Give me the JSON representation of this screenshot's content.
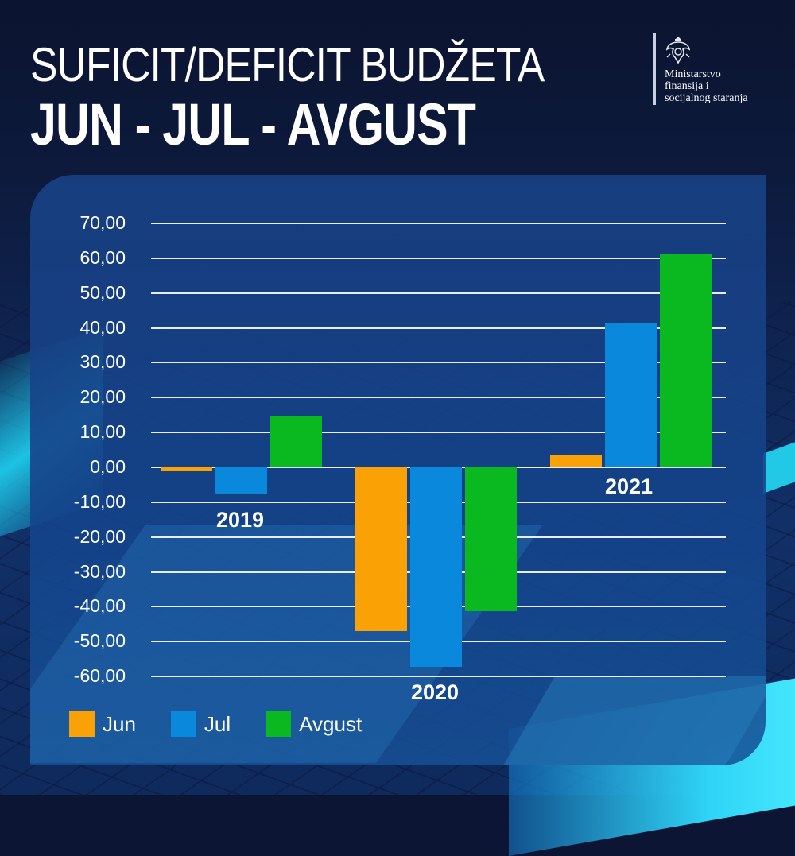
{
  "header": {
    "title_line1": "SUFICIT/DEFICIT BUDŽETA",
    "title_line2": "JUN - JUL - AVGUST"
  },
  "logo": {
    "emblem_icon": "montenegro-coat-of-arms-icon",
    "lines": [
      "Ministarstvo",
      "finansija i",
      "socijalnog staranja"
    ]
  },
  "colors": {
    "jun": "#F9A105",
    "jul": "#0A88DC",
    "avgust": "#0AB81F",
    "background": "#0C1634",
    "panel": "#184082"
  },
  "axis": {
    "ticks": [
      "70,00",
      "60,00",
      "50,00",
      "40,00",
      "30,00",
      "20,00",
      "10,00",
      "0,00",
      "-10,00",
      "-20,00",
      "-30,00",
      "-40,00",
      "-50,00",
      "-60,00"
    ]
  },
  "years": [
    {
      "label": "2019"
    },
    {
      "label": "2020"
    },
    {
      "label": "2021"
    }
  ],
  "legend": [
    {
      "label": "Jun",
      "color": "#F9A105"
    },
    {
      "label": "Jul",
      "color": "#0A88DC"
    },
    {
      "label": "Avgust",
      "color": "#0AB81F"
    }
  ],
  "chart_data": {
    "type": "bar",
    "title": "SUFICIT/DEFICIT BUDŽETA JUN - JUL - AVGUST",
    "categories": [
      "2019",
      "2020",
      "2021"
    ],
    "series": [
      {
        "name": "Jun",
        "color": "#F9A105",
        "values": [
          -1.1,
          -47.0,
          3.4
        ]
      },
      {
        "name": "Jul",
        "color": "#0A88DC",
        "values": [
          -7.5,
          -57.2,
          41.3
        ]
      },
      {
        "name": "Avgust",
        "color": "#0AB81F",
        "values": [
          14.8,
          -41.3,
          61.3
        ]
      }
    ],
    "xlabel": "",
    "ylabel": "",
    "ylim": [
      -60,
      70
    ],
    "yticks": [
      70,
      60,
      50,
      40,
      30,
      20,
      10,
      0,
      -10,
      -20,
      -30,
      -40,
      -50,
      -60
    ],
    "ytick_format": "comma decimal, 2 places",
    "grid": true,
    "legend_position": "bottom-left"
  }
}
